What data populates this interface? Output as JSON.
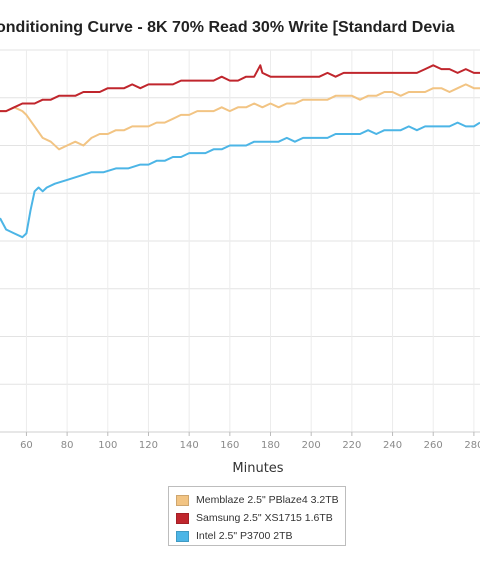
{
  "chart_data": {
    "type": "line",
    "title": "onditioning Curve - 8K 70% Read 30% Write [Standard Devia",
    "xlabel": "Minutes",
    "ylabel": "",
    "xlim": [
      47,
      283
    ],
    "ylim": [
      0,
      100
    ],
    "x_ticks": [
      60,
      80,
      100,
      120,
      140,
      160,
      180,
      200,
      220,
      240,
      260,
      280
    ],
    "x_tick_labels": [
      "60",
      "80",
      "100",
      "120",
      "140",
      "160",
      "180",
      "200",
      "220",
      "240",
      "260",
      "280"
    ],
    "grid": true,
    "legend_position": "bottom",
    "series": [
      {
        "name": "Memblaze 2.5\" PBlaze4 3.2TB",
        "color": "#f2c483",
        "points": [
          [
            47,
            84
          ],
          [
            50,
            84
          ],
          [
            54,
            85
          ],
          [
            58,
            84
          ],
          [
            60,
            83
          ],
          [
            64,
            80
          ],
          [
            68,
            77
          ],
          [
            72,
            76
          ],
          [
            76,
            74
          ],
          [
            80,
            75
          ],
          [
            84,
            76
          ],
          [
            88,
            75
          ],
          [
            92,
            77
          ],
          [
            96,
            78
          ],
          [
            100,
            78
          ],
          [
            104,
            79
          ],
          [
            108,
            79
          ],
          [
            112,
            80
          ],
          [
            116,
            80
          ],
          [
            120,
            80
          ],
          [
            124,
            81
          ],
          [
            128,
            81
          ],
          [
            132,
            82
          ],
          [
            136,
            83
          ],
          [
            140,
            83
          ],
          [
            144,
            84
          ],
          [
            148,
            84
          ],
          [
            152,
            84
          ],
          [
            156,
            85
          ],
          [
            160,
            84
          ],
          [
            164,
            85
          ],
          [
            168,
            85
          ],
          [
            172,
            86
          ],
          [
            176,
            85
          ],
          [
            180,
            86
          ],
          [
            184,
            85
          ],
          [
            188,
            86
          ],
          [
            192,
            86
          ],
          [
            196,
            87
          ],
          [
            200,
            87
          ],
          [
            204,
            87
          ],
          [
            208,
            87
          ],
          [
            212,
            88
          ],
          [
            216,
            88
          ],
          [
            220,
            88
          ],
          [
            224,
            87
          ],
          [
            228,
            88
          ],
          [
            232,
            88
          ],
          [
            236,
            89
          ],
          [
            240,
            89
          ],
          [
            244,
            88
          ],
          [
            248,
            89
          ],
          [
            252,
            89
          ],
          [
            256,
            89
          ],
          [
            260,
            90
          ],
          [
            264,
            90
          ],
          [
            268,
            89
          ],
          [
            272,
            90
          ],
          [
            276,
            91
          ],
          [
            280,
            90
          ],
          [
            283,
            90
          ]
        ]
      },
      {
        "name": "Samsung 2.5\" XS1715 1.6TB",
        "color": "#c0262d",
        "points": [
          [
            47,
            84
          ],
          [
            50,
            84
          ],
          [
            54,
            85
          ],
          [
            58,
            86
          ],
          [
            60,
            86
          ],
          [
            64,
            86
          ],
          [
            68,
            87
          ],
          [
            72,
            87
          ],
          [
            76,
            88
          ],
          [
            80,
            88
          ],
          [
            84,
            88
          ],
          [
            88,
            89
          ],
          [
            92,
            89
          ],
          [
            96,
            89
          ],
          [
            100,
            90
          ],
          [
            104,
            90
          ],
          [
            108,
            90
          ],
          [
            112,
            91
          ],
          [
            116,
            90
          ],
          [
            120,
            91
          ],
          [
            124,
            91
          ],
          [
            128,
            91
          ],
          [
            132,
            91
          ],
          [
            136,
            92
          ],
          [
            140,
            92
          ],
          [
            144,
            92
          ],
          [
            148,
            92
          ],
          [
            152,
            92
          ],
          [
            156,
            93
          ],
          [
            160,
            92
          ],
          [
            164,
            92
          ],
          [
            168,
            93
          ],
          [
            172,
            93
          ],
          [
            175,
            96
          ],
          [
            176,
            94
          ],
          [
            180,
            93
          ],
          [
            184,
            93
          ],
          [
            188,
            93
          ],
          [
            192,
            93
          ],
          [
            196,
            93
          ],
          [
            200,
            93
          ],
          [
            204,
            93
          ],
          [
            208,
            94
          ],
          [
            212,
            93
          ],
          [
            216,
            94
          ],
          [
            220,
            94
          ],
          [
            224,
            94
          ],
          [
            228,
            94
          ],
          [
            232,
            94
          ],
          [
            236,
            94
          ],
          [
            240,
            94
          ],
          [
            244,
            94
          ],
          [
            248,
            94
          ],
          [
            252,
            94
          ],
          [
            256,
            95
          ],
          [
            260,
            96
          ],
          [
            264,
            95
          ],
          [
            268,
            95
          ],
          [
            272,
            94
          ],
          [
            276,
            95
          ],
          [
            280,
            94
          ],
          [
            283,
            94
          ]
        ]
      },
      {
        "name": "Intel 2.5\" P3700 2TB",
        "color": "#4cb5e6",
        "points": [
          [
            47,
            56
          ],
          [
            50,
            53
          ],
          [
            54,
            52
          ],
          [
            58,
            51
          ],
          [
            60,
            52
          ],
          [
            62,
            58
          ],
          [
            64,
            63
          ],
          [
            66,
            64
          ],
          [
            68,
            63
          ],
          [
            70,
            64
          ],
          [
            74,
            65
          ],
          [
            80,
            66
          ],
          [
            86,
            67
          ],
          [
            92,
            68
          ],
          [
            98,
            68
          ],
          [
            104,
            69
          ],
          [
            110,
            69
          ],
          [
            116,
            70
          ],
          [
            120,
            70
          ],
          [
            124,
            71
          ],
          [
            128,
            71
          ],
          [
            132,
            72
          ],
          [
            136,
            72
          ],
          [
            140,
            73
          ],
          [
            144,
            73
          ],
          [
            148,
            73
          ],
          [
            152,
            74
          ],
          [
            156,
            74
          ],
          [
            160,
            75
          ],
          [
            164,
            75
          ],
          [
            168,
            75
          ],
          [
            172,
            76
          ],
          [
            176,
            76
          ],
          [
            180,
            76
          ],
          [
            184,
            76
          ],
          [
            188,
            77
          ],
          [
            192,
            76
          ],
          [
            196,
            77
          ],
          [
            200,
            77
          ],
          [
            204,
            77
          ],
          [
            208,
            77
          ],
          [
            212,
            78
          ],
          [
            216,
            78
          ],
          [
            220,
            78
          ],
          [
            224,
            78
          ],
          [
            228,
            79
          ],
          [
            232,
            78
          ],
          [
            236,
            79
          ],
          [
            240,
            79
          ],
          [
            244,
            79
          ],
          [
            248,
            80
          ],
          [
            252,
            79
          ],
          [
            256,
            80
          ],
          [
            260,
            80
          ],
          [
            264,
            80
          ],
          [
            268,
            80
          ],
          [
            272,
            81
          ],
          [
            276,
            80
          ],
          [
            280,
            80
          ],
          [
            283,
            81
          ]
        ]
      }
    ]
  }
}
